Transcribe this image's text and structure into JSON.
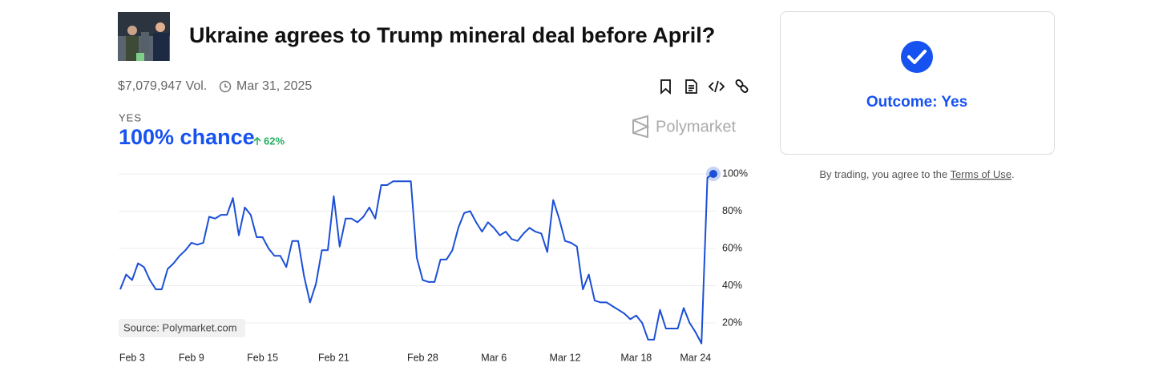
{
  "header": {
    "title": "Ukraine agrees to Trump mineral deal before April?",
    "volume": "$7,079,947 Vol.",
    "end_date": "Mar 31, 2025"
  },
  "market": {
    "outcome_label": "YES",
    "chance": "100% chance",
    "change": "62%",
    "brand": "Polymarket",
    "source": "Source: Polymarket.com"
  },
  "sidebar": {
    "outcome": "Outcome: Yes",
    "terms_prefix": "By trading, you agree to the ",
    "terms_link": "Terms of Use",
    "terms_suffix": "."
  },
  "chart_data": {
    "type": "line",
    "categories": [
      null,
      null,
      "Feb 3",
      null,
      null,
      null,
      null,
      null,
      null,
      null,
      null,
      null,
      "Feb 9",
      null,
      null,
      null,
      null,
      null,
      null,
      null,
      null,
      null,
      null,
      null,
      "Feb 15",
      null,
      null,
      null,
      null,
      null,
      null,
      null,
      null,
      null,
      null,
      null,
      "Feb 21",
      null,
      null,
      null,
      null,
      null,
      null,
      null,
      null,
      null,
      null,
      null,
      null,
      null,
      null,
      "Feb 28",
      null,
      null,
      null,
      null,
      null,
      null,
      null,
      null,
      null,
      null,
      null,
      "Mar 6",
      null,
      null,
      null,
      null,
      null,
      null,
      null,
      null,
      null,
      null,
      null,
      "Mar 12",
      null,
      null,
      null,
      null,
      null,
      null,
      null,
      null,
      null,
      null,
      null,
      "Mar 18",
      null,
      null,
      null,
      null,
      null,
      null,
      null,
      null,
      null,
      "Mar 24",
      null,
      null,
      null
    ],
    "series": [
      {
        "name": "Yes",
        "color": "#1b4fd6",
        "values": [
          38,
          46,
          43,
          52,
          50,
          43,
          38,
          38,
          49,
          52,
          56,
          59,
          63,
          62,
          63,
          77,
          76,
          78,
          78,
          87,
          67,
          82,
          78,
          66,
          66,
          60,
          56,
          56,
          50,
          64,
          64,
          45,
          31,
          41,
          59,
          59,
          88,
          61,
          76,
          76,
          74,
          77,
          82,
          76,
          94,
          94,
          96,
          96,
          96,
          96,
          55,
          43,
          42,
          42,
          54,
          54,
          59,
          71,
          79,
          80,
          74,
          69,
          74,
          71,
          67,
          69,
          65,
          64,
          68,
          71,
          69,
          68,
          58,
          86,
          76,
          64,
          63,
          61,
          38,
          46,
          32,
          31,
          31,
          29,
          27,
          25,
          22,
          24,
          20,
          11,
          11,
          27,
          17,
          17,
          17,
          28,
          20,
          15,
          9,
          98,
          100
        ]
      }
    ],
    "ylim": [
      0,
      100
    ],
    "yticks": [
      {
        "value": 20,
        "label": "20%"
      },
      {
        "value": 40,
        "label": "40%"
      },
      {
        "value": 60,
        "label": "60%"
      },
      {
        "value": 80,
        "label": "80%"
      },
      {
        "value": 100,
        "label": "100%"
      }
    ],
    "grid": true
  }
}
